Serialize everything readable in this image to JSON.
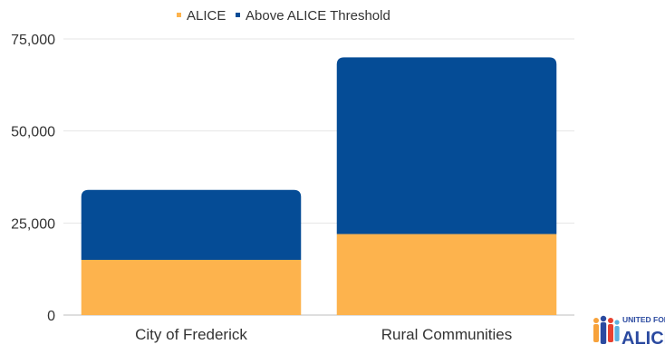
{
  "chart_data": {
    "type": "bar",
    "stacked": true,
    "categories": [
      "City of Frederick",
      "Rural Communities"
    ],
    "series": [
      {
        "name": "ALICE",
        "color": "#FDB34D",
        "values": [
          15000,
          22000
        ]
      },
      {
        "name": "Above ALICE Threshold",
        "color": "#054C96",
        "values": [
          19000,
          48000
        ]
      }
    ],
    "yticks": [
      0,
      25000,
      50000,
      75000
    ],
    "ytick_labels": [
      "0",
      "25,000",
      "50,000",
      "75,000"
    ],
    "ylim": [
      0,
      75000
    ],
    "grid": true,
    "legend_position": "top"
  },
  "logo": {
    "line1": "UNITED FOR",
    "line2": "ALICE"
  }
}
